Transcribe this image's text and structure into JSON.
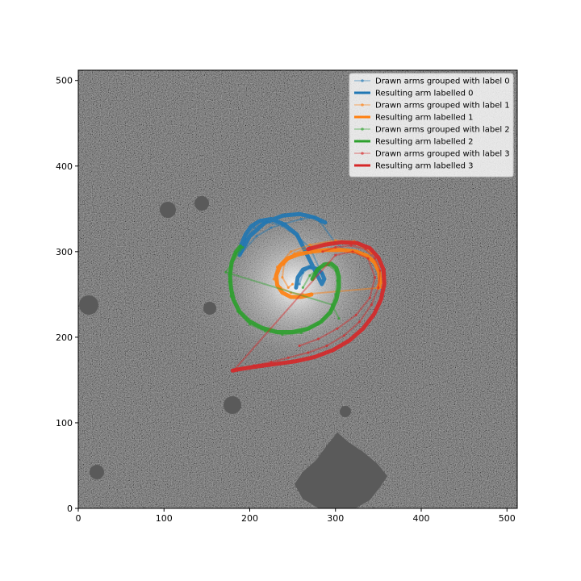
{
  "chart_data": {
    "type": "line",
    "title": "",
    "xlabel": "",
    "ylabel": "",
    "xlim": [
      0,
      512
    ],
    "ylim": [
      0,
      512
    ],
    "x_ticks": [
      0,
      100,
      200,
      300,
      400,
      500
    ],
    "y_ticks": [
      0,
      100,
      200,
      300,
      400,
      500
    ],
    "x_tick_labels": [
      "0",
      "100",
      "200",
      "300",
      "400",
      "500"
    ],
    "y_tick_labels": [
      "0",
      "100",
      "200",
      "300",
      "400",
      "500"
    ],
    "background": "galaxy image (grayscale)",
    "legend_position": "top-right",
    "colors": {
      "label0": "#1f77b4",
      "label1": "#ff7f0e",
      "label2": "#2ca02c",
      "label3": "#d62728"
    },
    "series": [
      {
        "name": "Drawn arms grouped with label 0",
        "kind": "drawn",
        "color": "#1f77b4",
        "points": [
          [
            258,
            262
          ],
          [
            262,
            275
          ],
          [
            270,
            282
          ],
          [
            278,
            280
          ],
          [
            284,
            274
          ],
          [
            270,
            305
          ],
          [
            255,
            318
          ],
          [
            238,
            330
          ],
          [
            220,
            335
          ],
          [
            205,
            328
          ],
          [
            195,
            315
          ],
          [
            190,
            298
          ],
          [
            208,
            318
          ],
          [
            225,
            328
          ],
          [
            242,
            333
          ],
          [
            260,
            338
          ],
          [
            275,
            340
          ],
          [
            282,
            335
          ],
          [
            300,
            310
          ],
          [
            312,
            302
          ]
        ]
      },
      {
        "name": "Resulting arm labelled 0",
        "kind": "result",
        "color": "#1f77b4",
        "points": [
          [
            254,
            258
          ],
          [
            256,
            270
          ],
          [
            262,
            279
          ],
          [
            270,
            282
          ],
          [
            278,
            280
          ],
          [
            284,
            275
          ],
          [
            287,
            268
          ],
          [
            284,
            262
          ],
          [
            255,
            320
          ],
          [
            240,
            332
          ],
          [
            225,
            338
          ],
          [
            212,
            336
          ],
          [
            202,
            330
          ],
          [
            195,
            320
          ],
          [
            190,
            308
          ],
          [
            188,
            296
          ],
          [
            200,
            318
          ],
          [
            218,
            334
          ],
          [
            238,
            342
          ],
          [
            258,
            344
          ],
          [
            275,
            340
          ],
          [
            288,
            334
          ]
        ]
      },
      {
        "name": "Drawn arms grouped with label 1",
        "kind": "drawn",
        "color": "#ff7f0e",
        "points": [
          [
            250,
            262
          ],
          [
            245,
            258
          ],
          [
            238,
            270
          ],
          [
            240,
            285
          ],
          [
            252,
            298
          ],
          [
            272,
            306
          ],
          [
            296,
            310
          ],
          [
            320,
            310
          ],
          [
            340,
            302
          ],
          [
            352,
            288
          ],
          [
            357,
            272
          ],
          [
            354,
            258
          ],
          [
            262,
            250
          ],
          [
            248,
            252
          ],
          [
            236,
            258
          ],
          [
            228,
            268
          ],
          [
            232,
            282
          ],
          [
            248,
            300
          ],
          [
            270,
            308
          ],
          [
            300,
            313
          ],
          [
            322,
            312
          ],
          [
            342,
            298
          ]
        ]
      },
      {
        "name": "Resulting arm labelled 1",
        "kind": "result",
        "color": "#ff7f0e",
        "points": [
          [
            272,
            250
          ],
          [
            260,
            247
          ],
          [
            248,
            247
          ],
          [
            238,
            252
          ],
          [
            232,
            261
          ],
          [
            231,
            272
          ],
          [
            235,
            283
          ],
          [
            244,
            292
          ],
          [
            257,
            297
          ],
          [
            273,
            300
          ],
          [
            290,
            302
          ],
          [
            308,
            302
          ],
          [
            324,
            300
          ],
          [
            337,
            295
          ],
          [
            346,
            287
          ],
          [
            351,
            276
          ],
          [
            352,
            264
          ],
          [
            350,
            258
          ]
        ]
      },
      {
        "name": "Drawn arms grouped with label 2",
        "kind": "drawn",
        "color": "#2ca02c",
        "points": [
          [
            262,
            258
          ],
          [
            270,
            272
          ],
          [
            282,
            282
          ],
          [
            292,
            284
          ],
          [
            300,
            278
          ],
          [
            302,
            266
          ],
          [
            300,
            250
          ],
          [
            294,
            232
          ],
          [
            280,
            215
          ],
          [
            260,
            205
          ],
          [
            238,
            203
          ],
          [
            218,
            207
          ],
          [
            200,
            215
          ],
          [
            186,
            230
          ],
          [
            178,
            248
          ],
          [
            176,
            265
          ],
          [
            178,
            282
          ],
          [
            184,
            298
          ],
          [
            192,
            305
          ],
          [
            172,
            276
          ],
          [
            296,
            238
          ],
          [
            304,
            222
          ]
        ]
      },
      {
        "name": "Resulting arm labelled 2",
        "kind": "result",
        "color": "#2ca02c",
        "points": [
          [
            273,
            268
          ],
          [
            279,
            279
          ],
          [
            287,
            285
          ],
          [
            295,
            286
          ],
          [
            301,
            281
          ],
          [
            304,
            271
          ],
          [
            304,
            258
          ],
          [
            301,
            244
          ],
          [
            294,
            229
          ],
          [
            283,
            218
          ],
          [
            268,
            210
          ],
          [
            250,
            206
          ],
          [
            232,
            206
          ],
          [
            214,
            211
          ],
          [
            199,
            219
          ],
          [
            188,
            230
          ],
          [
            181,
            244
          ],
          [
            178,
            258
          ],
          [
            177,
            273
          ],
          [
            179,
            288
          ],
          [
            184,
            300
          ],
          [
            189,
            306
          ]
        ]
      },
      {
        "name": "Drawn arms grouped with label 3",
        "kind": "drawn",
        "color": "#d62728",
        "points": [
          [
            285,
            300
          ],
          [
            300,
            305
          ],
          [
            318,
            307
          ],
          [
            335,
            303
          ],
          [
            346,
            292
          ],
          [
            352,
            278
          ],
          [
            350,
            258
          ],
          [
            342,
            238
          ],
          [
            328,
            218
          ],
          [
            310,
            202
          ],
          [
            290,
            190
          ],
          [
            268,
            182
          ],
          [
            245,
            176
          ],
          [
            225,
            171
          ],
          [
            205,
            167
          ],
          [
            182,
            162
          ],
          [
            300,
            296
          ],
          [
            320,
            300
          ],
          [
            338,
            292
          ],
          [
            346,
            270
          ],
          [
            340,
            246
          ],
          [
            324,
            226
          ],
          [
            302,
            210
          ],
          [
            280,
            198
          ],
          [
            258,
            190
          ]
        ]
      },
      {
        "name": "Resulting arm labelled 3",
        "kind": "result",
        "color": "#d62728",
        "points": [
          [
            268,
            303
          ],
          [
            287,
            308
          ],
          [
            307,
            311
          ],
          [
            325,
            310
          ],
          [
            340,
            304
          ],
          [
            350,
            293
          ],
          [
            356,
            279
          ],
          [
            357,
            262
          ],
          [
            353,
            244
          ],
          [
            345,
            227
          ],
          [
            332,
            210
          ],
          [
            316,
            196
          ],
          [
            297,
            185
          ],
          [
            276,
            177
          ],
          [
            254,
            172
          ],
          [
            232,
            169
          ],
          [
            210,
            166
          ],
          [
            190,
            163
          ],
          [
            180,
            161
          ]
        ]
      }
    ],
    "legend": [
      {
        "label": "Drawn arms grouped with label 0",
        "color": "#1f77b4",
        "style": "drawn"
      },
      {
        "label": "Resulting arm labelled 0",
        "color": "#1f77b4",
        "style": "result"
      },
      {
        "label": "Drawn arms grouped with label 1",
        "color": "#ff7f0e",
        "style": "drawn"
      },
      {
        "label": "Resulting arm labelled 1",
        "color": "#ff7f0e",
        "style": "result"
      },
      {
        "label": "Drawn arms grouped with label 2",
        "color": "#2ca02c",
        "style": "drawn"
      },
      {
        "label": "Resulting arm labelled 2",
        "color": "#2ca02c",
        "style": "result"
      },
      {
        "label": "Drawn arms grouped with label 3",
        "color": "#d62728",
        "style": "drawn"
      },
      {
        "label": "Resulting arm labelled 3",
        "color": "#d62728",
        "style": "result"
      }
    ]
  }
}
